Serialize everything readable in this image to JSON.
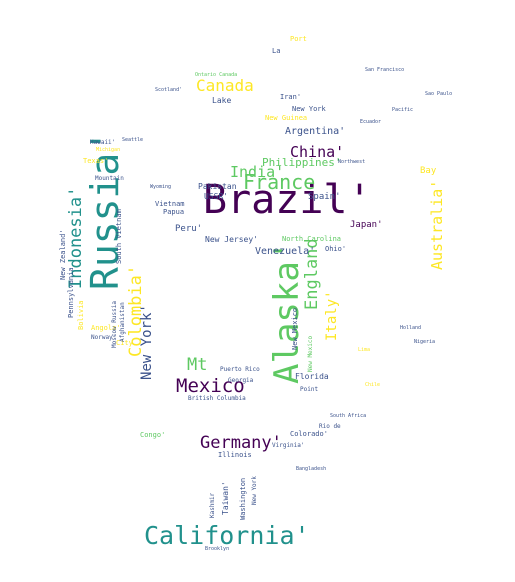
{
  "palette": {
    "background": "#ffffff",
    "viridis_dark": "#440154",
    "viridis_blue": "#3b528b",
    "viridis_teal": "#21918c",
    "viridis_green": "#5ec962",
    "viridis_yellow": "#fde725"
  },
  "words": {
    "brazil": "Brazil'",
    "russia": "Russia'",
    "alaska": "Alaska'",
    "california": "California'",
    "mexico": "Mexico",
    "germany": "Germany'",
    "france": "France",
    "colombia": "Colombia'",
    "indonesia": "Indonesia'",
    "england": "England",
    "australia": "Australia'",
    "newyork": "New York'",
    "italy": "Italy'",
    "canada": "Canada",
    "india": "India'",
    "china": "China'",
    "mt": "Mt",
    "philippines": "Philippines'",
    "argentina": "Argentina'",
    "venezuela": "Venezuela'",
    "japan": "Japan'",
    "spain": "Spain'",
    "peru": "Peru'",
    "pakistan": "Pakistan",
    "ussr": "USSR'",
    "newjersey": "New Jersey'",
    "northcarolina": "North Carolina",
    "vietnam": "Vietnam",
    "papua": "Papua",
    "florida": "Florida",
    "colorado": "Colorado'",
    "ohio": "Ohio'",
    "bay": "Bay",
    "iran": "Iran'",
    "lake": "Lake",
    "newguinea": "New Guinea",
    "texas": "Texas'",
    "hawaii": "Hawaii'",
    "angola": "Angola'",
    "norway": "Norway'",
    "congo": "Congo'",
    "illinois": "Illinois",
    "taiwan": "Taiwan'",
    "kashmir": "Kashmir",
    "washington": "Washington",
    "newzealand": "New Zealand'",
    "pennsylvania": "Pennsylvania",
    "southvietnam": "South Vietnam",
    "moscowrussia": "Moscow Russia",
    "afghanistan": "Afghanistan",
    "mountain": "Mountain",
    "michigan": "Michigan",
    "georgia": "Georgia",
    "puertorico": "Puerto Rico",
    "britishcolumbia": "British Columbia",
    "riode": "Rio de",
    "southafrica": "South Africa",
    "virginia": "Virginia'",
    "point": "Point",
    "chile": "Chile",
    "newyork2": "New York",
    "city": "City",
    "newmexico": "New Mexico",
    "ontariocanada": "Ontario Canada",
    "scotland": "Scotland'",
    "bolivia": "Bolivia",
    "newmexico2": "New Mexico",
    "sanfrancisco": "San Francisco",
    "la": "La",
    "sao_paulo": "Sao Paulo",
    "ecuador": "Ecuador",
    "pacific": "Pacific",
    "northwest": "Northwest",
    "seattle": "Seattle",
    "bangladesh": "Bangladesh",
    "wyoming": "Wyoming",
    "brooklyn": "Brooklyn",
    "lima": "Lima",
    "nigeria": "Nigeria",
    "holland": "Holland",
    "port": "Port"
  }
}
